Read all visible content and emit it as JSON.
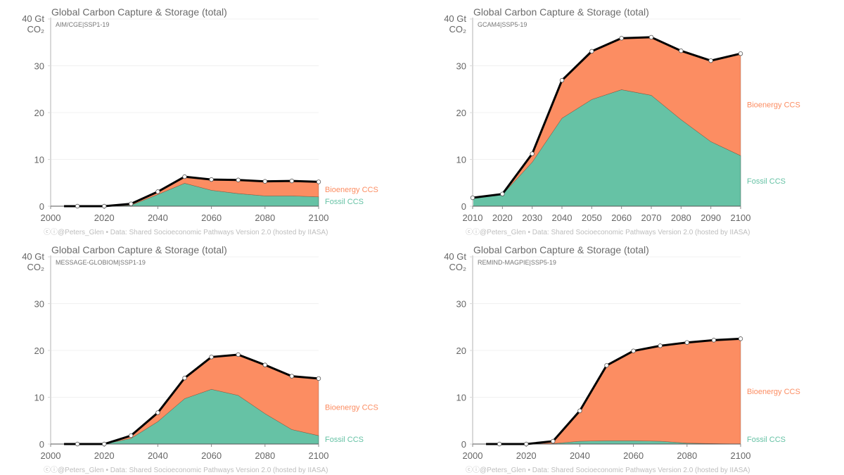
{
  "colors": {
    "bioenergy": "#fc8d62",
    "fossil": "#66c2a5",
    "total": "#000000",
    "grid": "#f0f0f0",
    "axis": "#d9d9d9"
  },
  "chart_data": [
    {
      "type": "area",
      "title": "Global Carbon Capture & Storage (total)",
      "model": "AIM/CGE|SSP1-19",
      "ylabel_top": "40 Gt",
      "ylabel_unit": "CO₂",
      "ylim": [
        0,
        40
      ],
      "yticks": [
        0,
        10,
        20,
        30
      ],
      "xlim": [
        2000,
        2100
      ],
      "xticks": [
        2000,
        2020,
        2040,
        2060,
        2080,
        2100
      ],
      "x": [
        2005,
        2010,
        2020,
        2030,
        2040,
        2050,
        2060,
        2070,
        2080,
        2090,
        2100
      ],
      "series": [
        {
          "name": "Fossil CCS",
          "values": [
            0,
            0,
            0,
            0.2,
            2.5,
            4.9,
            3.4,
            2.7,
            2.2,
            2.2,
            2.0
          ]
        },
        {
          "name": "Bioenergy CCS",
          "values": [
            0,
            0,
            0,
            0.3,
            0.6,
            1.4,
            2.3,
            2.9,
            3.1,
            3.2,
            3.2
          ]
        }
      ],
      "total": [
        0,
        0,
        0,
        0.5,
        3.1,
        6.3,
        5.7,
        5.6,
        5.3,
        5.4,
        5.2
      ],
      "footer": "ⓒⓘ@Peters_Glen  •  Data: Shared Socioeconomic Pathways Version 2.0 (hosted by IIASA)"
    },
    {
      "type": "area",
      "title": "Global Carbon Capture & Storage (total)",
      "model": "GCAM4|SSP5-19",
      "ylabel_top": "40 Gt",
      "ylabel_unit": "CO₂",
      "ylim": [
        0,
        40
      ],
      "yticks": [
        0,
        10,
        20,
        30
      ],
      "xlim": [
        2010,
        2100
      ],
      "xticks": [
        2010,
        2020,
        2030,
        2040,
        2050,
        2060,
        2070,
        2080,
        2090,
        2100
      ],
      "x": [
        2010,
        2020,
        2030,
        2040,
        2050,
        2060,
        2070,
        2080,
        2090,
        2100
      ],
      "series": [
        {
          "name": "Fossil CCS",
          "values": [
            1.7,
            2.5,
            9.4,
            18.8,
            22.8,
            24.9,
            23.7,
            18.5,
            13.8,
            10.8
          ]
        },
        {
          "name": "Bioenergy CCS",
          "values": [
            0.1,
            0.1,
            1.8,
            8.1,
            10.3,
            11.0,
            12.4,
            14.7,
            17.3,
            21.8
          ]
        }
      ],
      "total": [
        1.8,
        2.6,
        11.2,
        26.9,
        33.1,
        35.9,
        36.1,
        33.2,
        31.1,
        32.6
      ],
      "footer": "ⓒⓘ@Peters_Glen  •  Data: Shared Socioeconomic Pathways Version 2.0 (hosted by IIASA)"
    },
    {
      "type": "area",
      "title": "Global Carbon Capture & Storage (total)",
      "model": "MESSAGE-GLOBIOM|SSP1-19",
      "ylabel_top": "40 Gt",
      "ylabel_unit": "CO₂",
      "ylim": [
        0,
        40
      ],
      "yticks": [
        0,
        10,
        20,
        30
      ],
      "xlim": [
        2000,
        2100
      ],
      "xticks": [
        2000,
        2020,
        2040,
        2060,
        2080,
        2100
      ],
      "x": [
        2005,
        2010,
        2020,
        2030,
        2040,
        2050,
        2060,
        2070,
        2080,
        2090,
        2100
      ],
      "series": [
        {
          "name": "Fossil CCS",
          "values": [
            0,
            0,
            0,
            1.2,
            4.8,
            9.7,
            11.7,
            10.4,
            6.5,
            3.1,
            1.8
          ]
        },
        {
          "name": "Bioenergy CCS",
          "values": [
            0,
            0,
            0,
            0.6,
            1.9,
            4.4,
            6.9,
            8.7,
            10.4,
            11.4,
            12.2
          ]
        }
      ],
      "total": [
        0,
        0,
        0,
        1.8,
        6.7,
        14.1,
        18.6,
        19.1,
        16.9,
        14.5,
        14.0
      ],
      "footer": "ⓒⓘ@Peters_Glen  •  Data: Shared Socioeconomic Pathways Version 2.0 (hosted by IIASA)"
    },
    {
      "type": "area",
      "title": "Global Carbon Capture & Storage (total)",
      "model": "REMIND-MAGPIE|SSP5-19",
      "ylabel_top": "40 Gt",
      "ylabel_unit": "CO₂",
      "ylim": [
        0,
        40
      ],
      "yticks": [
        0,
        10,
        20,
        30
      ],
      "xlim": [
        2000,
        2100
      ],
      "xticks": [
        2000,
        2020,
        2040,
        2060,
        2080,
        2100
      ],
      "x": [
        2005,
        2010,
        2020,
        2030,
        2040,
        2050,
        2060,
        2070,
        2080,
        2090,
        2100
      ],
      "series": [
        {
          "name": "Fossil CCS",
          "values": [
            0,
            0,
            0,
            0.1,
            0.6,
            0.7,
            0.7,
            0.6,
            0.2,
            0.1,
            0.0
          ]
        },
        {
          "name": "Bioenergy CCS",
          "values": [
            0,
            0,
            0,
            0.5,
            6.5,
            16.1,
            19.2,
            20.4,
            21.5,
            22.1,
            22.5
          ]
        }
      ],
      "total": [
        0,
        0,
        0,
        0.6,
        7.1,
        16.8,
        19.9,
        21.0,
        21.7,
        22.2,
        22.5
      ],
      "footer": "ⓒⓘ@Peters_Glen  •  Data: Shared Socioeconomic Pathways Version 2.0 (hosted by IIASA)"
    }
  ]
}
